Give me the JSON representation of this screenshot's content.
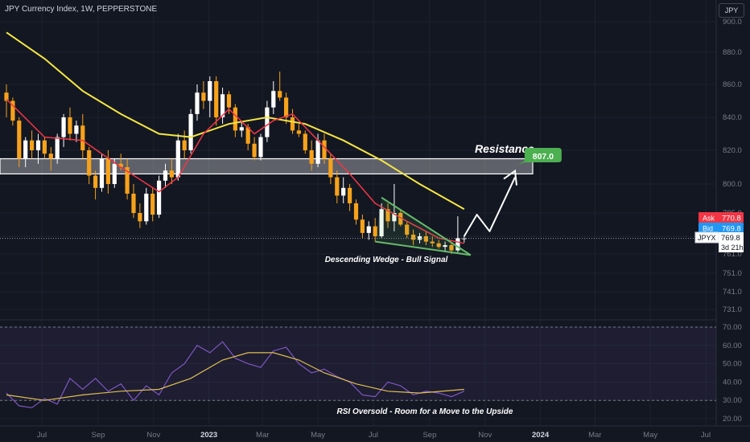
{
  "header": {
    "title": "JPY Currency Index, 1W, PEPPERSTONE",
    "currency_button": "JPY"
  },
  "colors": {
    "background": "#131722",
    "up": "#ffffff",
    "down": "#f7a21b",
    "ema_fast": "#f23645",
    "ema_slow": "#f5e642",
    "rsi": "#7e57c2",
    "rsi_ma": "#e0c050",
    "wedge": "#66bb6a",
    "resistance": "#ffffff",
    "target": "#4caf50",
    "ask": "#f23645",
    "bid": "#2196f3"
  },
  "chart_data": [
    {
      "type": "candlestick",
      "title": "JPY Currency Index, 1W, PEPPERSTONE",
      "ylim": [
        725,
        905
      ],
      "y_ticks": [
        "900.0",
        "880.0",
        "860.0",
        "840.0",
        "820.0",
        "800.0",
        "785.0",
        "771.0",
        "761.0",
        "751.0",
        "741.0",
        "731.0"
      ],
      "y_tick_values": [
        900,
        880,
        860,
        840,
        820,
        800,
        785,
        771,
        761,
        751,
        741,
        731
      ],
      "x_ticks": [
        "Jul",
        "Sep",
        "Nov",
        "2023",
        "Mar",
        "May",
        "Jul",
        "Sep",
        "Nov",
        "2024",
        "Mar",
        "May",
        "Jul"
      ],
      "x_tick_dates": [
        "2022-07-01",
        "2022-09-01",
        "2022-11-01",
        "2023-01-01",
        "2023-03-01",
        "2023-05-01",
        "2023-07-01",
        "2023-09-01",
        "2023-11-01",
        "2024-01-01",
        "2024-03-01",
        "2024-05-01",
        "2024-07-01"
      ],
      "candles": [
        {
          "date": "2022-05-23",
          "o": 855,
          "h": 860,
          "l": 840,
          "c": 850
        },
        {
          "date": "2022-05-30",
          "o": 850,
          "h": 852,
          "l": 835,
          "c": 838
        },
        {
          "date": "2022-06-06",
          "o": 838,
          "h": 840,
          "l": 810,
          "c": 815
        },
        {
          "date": "2022-06-13",
          "o": 815,
          "h": 828,
          "l": 810,
          "c": 826
        },
        {
          "date": "2022-06-20",
          "o": 826,
          "h": 832,
          "l": 815,
          "c": 820
        },
        {
          "date": "2022-06-27",
          "o": 820,
          "h": 830,
          "l": 812,
          "c": 826
        },
        {
          "date": "2022-07-04",
          "o": 826,
          "h": 828,
          "l": 815,
          "c": 818
        },
        {
          "date": "2022-07-11",
          "o": 818,
          "h": 822,
          "l": 808,
          "c": 815
        },
        {
          "date": "2022-07-18",
          "o": 815,
          "h": 830,
          "l": 812,
          "c": 828
        },
        {
          "date": "2022-07-25",
          "o": 828,
          "h": 842,
          "l": 822,
          "c": 840
        },
        {
          "date": "2022-08-01",
          "o": 840,
          "h": 846,
          "l": 826,
          "c": 830
        },
        {
          "date": "2022-08-08",
          "o": 830,
          "h": 838,
          "l": 825,
          "c": 835
        },
        {
          "date": "2022-08-15",
          "o": 835,
          "h": 842,
          "l": 815,
          "c": 820
        },
        {
          "date": "2022-08-22",
          "o": 820,
          "h": 822,
          "l": 800,
          "c": 805
        },
        {
          "date": "2022-08-29",
          "o": 805,
          "h": 808,
          "l": 792,
          "c": 798
        },
        {
          "date": "2022-09-05",
          "o": 798,
          "h": 818,
          "l": 796,
          "c": 815
        },
        {
          "date": "2022-09-12",
          "o": 815,
          "h": 820,
          "l": 795,
          "c": 800
        },
        {
          "date": "2022-09-19",
          "o": 800,
          "h": 815,
          "l": 798,
          "c": 812
        },
        {
          "date": "2022-09-26",
          "o": 812,
          "h": 818,
          "l": 808,
          "c": 810
        },
        {
          "date": "2022-10-03",
          "o": 810,
          "h": 815,
          "l": 792,
          "c": 795
        },
        {
          "date": "2022-10-10",
          "o": 795,
          "h": 800,
          "l": 782,
          "c": 785
        },
        {
          "date": "2022-10-17",
          "o": 785,
          "h": 790,
          "l": 776,
          "c": 780
        },
        {
          "date": "2022-10-24",
          "o": 780,
          "h": 798,
          "l": 778,
          "c": 795
        },
        {
          "date": "2022-10-31",
          "o": 795,
          "h": 798,
          "l": 780,
          "c": 784
        },
        {
          "date": "2022-11-07",
          "o": 784,
          "h": 805,
          "l": 782,
          "c": 802
        },
        {
          "date": "2022-11-14",
          "o": 802,
          "h": 812,
          "l": 798,
          "c": 808
        },
        {
          "date": "2022-11-21",
          "o": 808,
          "h": 815,
          "l": 800,
          "c": 804
        },
        {
          "date": "2022-11-28",
          "o": 804,
          "h": 830,
          "l": 802,
          "c": 826
        },
        {
          "date": "2022-12-05",
          "o": 826,
          "h": 832,
          "l": 815,
          "c": 820
        },
        {
          "date": "2022-12-12",
          "o": 820,
          "h": 845,
          "l": 818,
          "c": 842
        },
        {
          "date": "2022-12-19",
          "o": 842,
          "h": 860,
          "l": 838,
          "c": 855
        },
        {
          "date": "2022-12-26",
          "o": 855,
          "h": 862,
          "l": 845,
          "c": 850
        },
        {
          "date": "2023-01-02",
          "o": 850,
          "h": 865,
          "l": 840,
          "c": 862
        },
        {
          "date": "2023-01-09",
          "o": 862,
          "h": 865,
          "l": 835,
          "c": 840
        },
        {
          "date": "2023-01-16",
          "o": 840,
          "h": 858,
          "l": 836,
          "c": 854
        },
        {
          "date": "2023-01-23",
          "o": 854,
          "h": 856,
          "l": 842,
          "c": 846
        },
        {
          "date": "2023-01-30",
          "o": 846,
          "h": 848,
          "l": 828,
          "c": 832
        },
        {
          "date": "2023-02-06",
          "o": 832,
          "h": 838,
          "l": 828,
          "c": 834
        },
        {
          "date": "2023-02-13",
          "o": 834,
          "h": 836,
          "l": 820,
          "c": 824
        },
        {
          "date": "2023-02-20",
          "o": 824,
          "h": 828,
          "l": 814,
          "c": 816
        },
        {
          "date": "2023-02-27",
          "o": 816,
          "h": 830,
          "l": 814,
          "c": 828
        },
        {
          "date": "2023-03-06",
          "o": 828,
          "h": 850,
          "l": 825,
          "c": 846
        },
        {
          "date": "2023-03-13",
          "o": 846,
          "h": 862,
          "l": 842,
          "c": 856
        },
        {
          "date": "2023-03-20",
          "o": 856,
          "h": 868,
          "l": 850,
          "c": 852
        },
        {
          "date": "2023-03-27",
          "o": 852,
          "h": 855,
          "l": 836,
          "c": 840
        },
        {
          "date": "2023-04-03",
          "o": 840,
          "h": 845,
          "l": 830,
          "c": 832
        },
        {
          "date": "2023-04-10",
          "o": 832,
          "h": 836,
          "l": 828,
          "c": 830
        },
        {
          "date": "2023-04-17",
          "o": 830,
          "h": 832,
          "l": 818,
          "c": 820
        },
        {
          "date": "2023-04-24",
          "o": 820,
          "h": 826,
          "l": 808,
          "c": 812
        },
        {
          "date": "2023-05-01",
          "o": 812,
          "h": 830,
          "l": 810,
          "c": 826
        },
        {
          "date": "2023-05-08",
          "o": 826,
          "h": 830,
          "l": 812,
          "c": 815
        },
        {
          "date": "2023-05-15",
          "o": 815,
          "h": 818,
          "l": 800,
          "c": 804
        },
        {
          "date": "2023-05-22",
          "o": 804,
          "h": 808,
          "l": 790,
          "c": 794
        },
        {
          "date": "2023-05-29",
          "o": 794,
          "h": 804,
          "l": 790,
          "c": 798
        },
        {
          "date": "2023-06-05",
          "o": 798,
          "h": 800,
          "l": 786,
          "c": 790
        },
        {
          "date": "2023-06-12",
          "o": 790,
          "h": 792,
          "l": 778,
          "c": 781
        },
        {
          "date": "2023-06-19",
          "o": 781,
          "h": 784,
          "l": 770,
          "c": 773
        },
        {
          "date": "2023-06-26",
          "o": 773,
          "h": 780,
          "l": 769,
          "c": 777
        },
        {
          "date": "2023-07-03",
          "o": 777,
          "h": 782,
          "l": 768,
          "c": 771
        },
        {
          "date": "2023-07-10",
          "o": 771,
          "h": 790,
          "l": 770,
          "c": 787
        },
        {
          "date": "2023-07-17",
          "o": 787,
          "h": 790,
          "l": 776,
          "c": 780
        },
        {
          "date": "2023-07-24",
          "o": 780,
          "h": 800,
          "l": 774,
          "c": 785
        },
        {
          "date": "2023-07-31",
          "o": 785,
          "h": 787,
          "l": 777,
          "c": 778
        },
        {
          "date": "2023-08-07",
          "o": 778,
          "h": 780,
          "l": 770,
          "c": 772
        },
        {
          "date": "2023-08-14",
          "o": 772,
          "h": 775,
          "l": 766,
          "c": 769
        },
        {
          "date": "2023-08-21",
          "o": 769,
          "h": 773,
          "l": 767,
          "c": 771
        },
        {
          "date": "2023-08-28",
          "o": 771,
          "h": 774,
          "l": 766,
          "c": 768
        },
        {
          "date": "2023-09-04",
          "o": 768,
          "h": 771,
          "l": 765,
          "c": 767
        },
        {
          "date": "2023-09-11",
          "o": 767,
          "h": 769,
          "l": 764,
          "c": 765
        },
        {
          "date": "2023-09-18",
          "o": 765,
          "h": 768,
          "l": 762,
          "c": 766
        },
        {
          "date": "2023-09-25",
          "o": 766,
          "h": 767,
          "l": 761,
          "c": 763
        },
        {
          "date": "2023-10-02",
          "o": 763,
          "h": 783,
          "l": 762,
          "c": 770
        },
        {
          "date": "2023-10-09",
          "o": 769.5,
          "h": 771.5,
          "l": 767.5,
          "c": 769.8
        }
      ],
      "ema_fast": [
        {
          "date": "2022-05-23",
          "v": 851
        },
        {
          "date": "2022-07-04",
          "v": 828
        },
        {
          "date": "2022-08-15",
          "v": 826
        },
        {
          "date": "2022-09-26",
          "v": 810
        },
        {
          "date": "2022-11-07",
          "v": 796
        },
        {
          "date": "2022-11-28",
          "v": 804
        },
        {
          "date": "2022-12-26",
          "v": 830
        },
        {
          "date": "2023-01-23",
          "v": 845
        },
        {
          "date": "2023-02-20",
          "v": 830
        },
        {
          "date": "2023-03-13",
          "v": 838
        },
        {
          "date": "2023-04-03",
          "v": 842
        },
        {
          "date": "2023-05-01",
          "v": 826
        },
        {
          "date": "2023-06-05",
          "v": 806
        },
        {
          "date": "2023-07-03",
          "v": 790
        },
        {
          "date": "2023-08-07",
          "v": 780
        },
        {
          "date": "2023-09-11",
          "v": 770
        },
        {
          "date": "2023-10-09",
          "v": 767
        }
      ],
      "ema_slow": [
        {
          "date": "2022-05-23",
          "v": 893
        },
        {
          "date": "2022-07-04",
          "v": 876
        },
        {
          "date": "2022-08-15",
          "v": 856
        },
        {
          "date": "2022-09-26",
          "v": 842
        },
        {
          "date": "2022-11-07",
          "v": 830
        },
        {
          "date": "2022-12-12",
          "v": 828
        },
        {
          "date": "2023-01-23",
          "v": 836
        },
        {
          "date": "2023-03-06",
          "v": 840
        },
        {
          "date": "2023-04-17",
          "v": 836
        },
        {
          "date": "2023-05-29",
          "v": 826
        },
        {
          "date": "2023-07-10",
          "v": 814
        },
        {
          "date": "2023-08-21",
          "v": 800
        },
        {
          "date": "2023-10-09",
          "v": 787
        }
      ],
      "resistance_zone": [
        806,
        815
      ],
      "wedge": {
        "upper": [
          {
            "date": "2023-07-10",
            "v": 793
          },
          {
            "date": "2023-10-09",
            "v": 764
          }
        ],
        "lower": [
          {
            "date": "2023-07-03",
            "v": 768
          },
          {
            "date": "2023-10-09",
            "v": 764
          }
        ]
      },
      "projection": [
        {
          "date": "2023-10-09",
          "v": 771
        },
        {
          "date": "2023-10-23",
          "v": 784
        },
        {
          "date": "2023-11-06",
          "v": 774
        },
        {
          "date": "2023-12-04",
          "v": 804
        }
      ],
      "target": {
        "date": "2023-12-11",
        "value": "807.0"
      },
      "last_price": 769.8,
      "price_labels": {
        "ask_label": "Ask",
        "ask_value": "770.8",
        "bid_label": "Bid",
        "bid_value": "769.8",
        "symbol": "JPYX",
        "last_value": "769.8",
        "countdown": "3d 21h"
      },
      "annotations": {
        "resistance": "Resistance",
        "wedge": "Descending Wedge - Bull Signal"
      }
    },
    {
      "type": "line",
      "ylim": [
        17,
        75
      ],
      "y_ticks": [
        "70.00",
        "60.00",
        "50.00",
        "40.00",
        "30.00",
        "20.00"
      ],
      "y_tick_values": [
        70,
        60,
        50,
        40,
        30,
        20
      ],
      "overbought": 70,
      "oversold": 30,
      "series": [
        {
          "values": [
            {
              "date": "2022-05-23",
              "v": 34
            },
            {
              "date": "2022-06-06",
              "v": 27
            },
            {
              "date": "2022-06-20",
              "v": 26
            },
            {
              "date": "2022-07-04",
              "v": 31
            },
            {
              "date": "2022-07-18",
              "v": 28
            },
            {
              "date": "2022-08-01",
              "v": 42
            },
            {
              "date": "2022-08-15",
              "v": 36
            },
            {
              "date": "2022-08-29",
              "v": 42
            },
            {
              "date": "2022-09-12",
              "v": 35
            },
            {
              "date": "2022-09-26",
              "v": 39
            },
            {
              "date": "2022-10-10",
              "v": 30
            },
            {
              "date": "2022-10-24",
              "v": 38
            },
            {
              "date": "2022-11-07",
              "v": 33
            },
            {
              "date": "2022-11-21",
              "v": 45
            },
            {
              "date": "2022-12-05",
              "v": 50
            },
            {
              "date": "2022-12-19",
              "v": 60
            },
            {
              "date": "2023-01-02",
              "v": 56
            },
            {
              "date": "2023-01-16",
              "v": 62
            },
            {
              "date": "2023-01-30",
              "v": 53
            },
            {
              "date": "2023-02-13",
              "v": 50
            },
            {
              "date": "2023-02-27",
              "v": 48
            },
            {
              "date": "2023-03-13",
              "v": 57
            },
            {
              "date": "2023-03-27",
              "v": 59
            },
            {
              "date": "2023-04-10",
              "v": 50
            },
            {
              "date": "2023-04-24",
              "v": 45
            },
            {
              "date": "2023-05-08",
              "v": 47
            },
            {
              "date": "2023-05-22",
              "v": 43
            },
            {
              "date": "2023-06-05",
              "v": 40
            },
            {
              "date": "2023-06-19",
              "v": 33
            },
            {
              "date": "2023-07-03",
              "v": 32
            },
            {
              "date": "2023-07-17",
              "v": 40
            },
            {
              "date": "2023-07-31",
              "v": 38
            },
            {
              "date": "2023-08-14",
              "v": 33
            },
            {
              "date": "2023-08-28",
              "v": 35
            },
            {
              "date": "2023-09-11",
              "v": 34
            },
            {
              "date": "2023-09-25",
              "v": 32
            },
            {
              "date": "2023-10-09",
              "v": 35
            }
          ]
        },
        {
          "values": [
            {
              "date": "2022-05-23",
              "v": 33
            },
            {
              "date": "2022-07-04",
              "v": 30
            },
            {
              "date": "2022-08-15",
              "v": 33
            },
            {
              "date": "2022-09-26",
              "v": 35
            },
            {
              "date": "2022-11-07",
              "v": 36
            },
            {
              "date": "2022-12-12",
              "v": 42
            },
            {
              "date": "2023-01-16",
              "v": 52
            },
            {
              "date": "2023-02-13",
              "v": 56
            },
            {
              "date": "2023-03-13",
              "v": 56
            },
            {
              "date": "2023-04-10",
              "v": 52
            },
            {
              "date": "2023-05-08",
              "v": 45
            },
            {
              "date": "2023-06-12",
              "v": 39
            },
            {
              "date": "2023-07-17",
              "v": 35
            },
            {
              "date": "2023-08-21",
              "v": 34
            },
            {
              "date": "2023-10-09",
              "v": 36
            }
          ]
        }
      ],
      "annotations": {
        "rsi_note": "RSI Oversold - Room for a Move to the Upside"
      }
    }
  ]
}
